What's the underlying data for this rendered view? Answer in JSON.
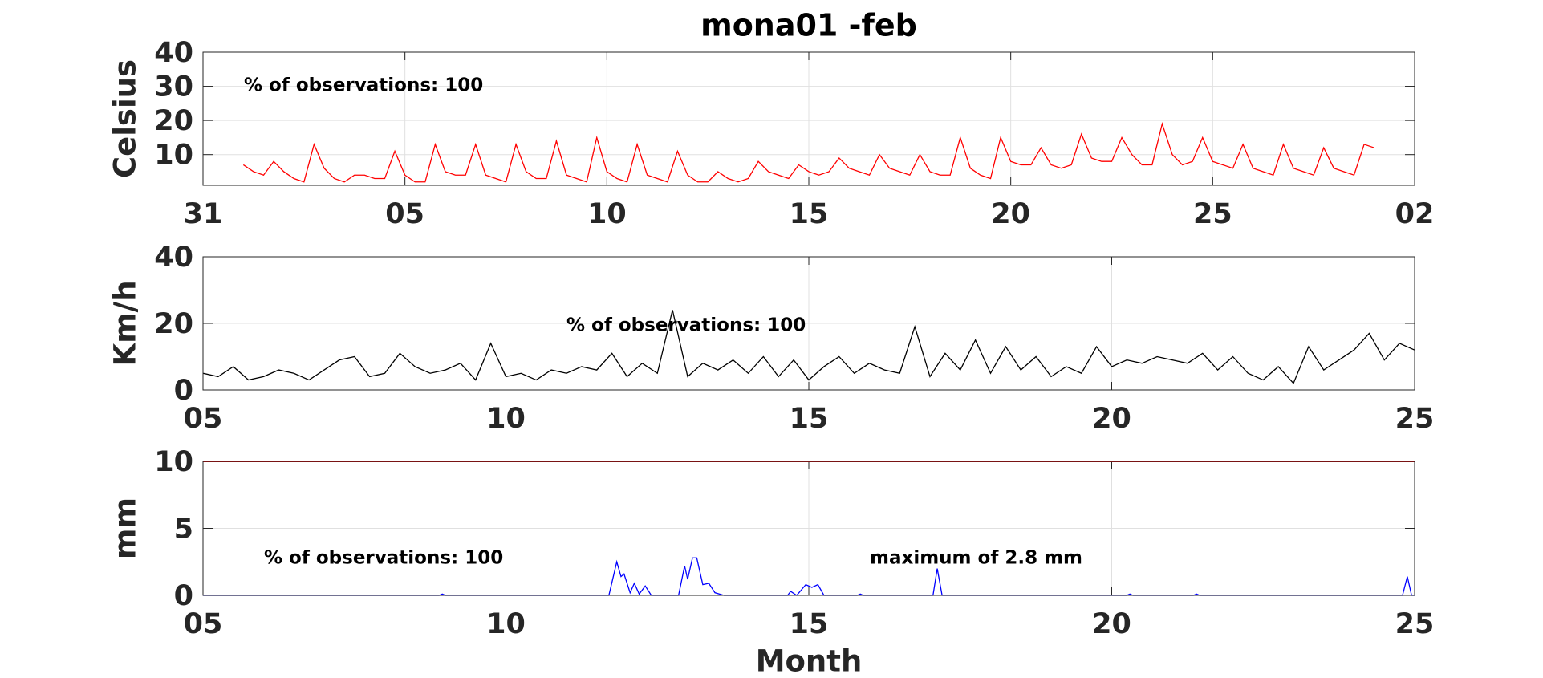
{
  "chart_data": [
    {
      "type": "line",
      "title": "mona01 -feb",
      "ylabel": "Celsius",
      "annotations": [
        "% of observations: 100"
      ],
      "color": "#ff0000",
      "grid": true,
      "xlim": [
        0,
        30
      ],
      "xticks": [
        {
          "value": 0,
          "label": "31"
        },
        {
          "value": 5,
          "label": "05"
        },
        10,
        15,
        20,
        25,
        {
          "value": 30,
          "label": "02"
        }
      ],
      "ylim": [
        1,
        40
      ],
      "yticks": [
        10,
        20,
        30,
        40
      ],
      "x": [
        1,
        1.25,
        1.5,
        1.75,
        2,
        2.25,
        2.5,
        2.75,
        3,
        3.25,
        3.5,
        3.75,
        4,
        4.25,
        4.5,
        4.75,
        5,
        5.25,
        5.5,
        5.75,
        6,
        6.25,
        6.5,
        6.75,
        7,
        7.25,
        7.5,
        7.75,
        8,
        8.25,
        8.5,
        8.75,
        9,
        9.25,
        9.5,
        9.75,
        10,
        10.25,
        10.5,
        10.75,
        11,
        11.25,
        11.5,
        11.75,
        12,
        12.25,
        12.5,
        12.75,
        13,
        13.25,
        13.5,
        13.75,
        14,
        14.25,
        14.5,
        14.75,
        15,
        15.25,
        15.5,
        15.75,
        16,
        16.25,
        16.5,
        16.75,
        17,
        17.25,
        17.5,
        17.75,
        18,
        18.25,
        18.5,
        18.75,
        19,
        19.25,
        19.5,
        19.75,
        20,
        20.25,
        20.5,
        20.75,
        21,
        21.25,
        21.5,
        21.75,
        22,
        22.25,
        22.5,
        22.75,
        23,
        23.25,
        23.5,
        23.75,
        24,
        24.25,
        24.5,
        24.75,
        25,
        25.25,
        25.5,
        25.75,
        26,
        26.25,
        26.5,
        26.75,
        27,
        27.25,
        27.5,
        27.75,
        28,
        28.25,
        28.5,
        28.75,
        29
      ],
      "values": [
        7,
        5,
        4,
        8,
        5,
        3,
        2,
        13,
        6,
        3,
        2,
        4,
        4,
        3,
        3,
        11,
        4,
        2,
        2,
        13,
        5,
        4,
        4,
        13,
        4,
        3,
        2,
        13,
        5,
        3,
        3,
        14,
        4,
        3,
        2,
        15,
        5,
        3,
        2,
        13,
        4,
        3,
        2,
        11,
        4,
        2,
        2,
        5,
        3,
        2,
        3,
        8,
        5,
        4,
        3,
        7,
        5,
        4,
        5,
        9,
        6,
        5,
        4,
        10,
        6,
        5,
        4,
        10,
        5,
        4,
        4,
        15,
        6,
        4,
        3,
        15,
        8,
        7,
        7,
        12,
        7,
        6,
        7,
        16,
        9,
        8,
        8,
        15,
        10,
        7,
        7,
        19,
        10,
        7,
        8,
        15,
        8,
        7,
        6,
        13,
        6,
        5,
        4,
        13,
        6,
        5,
        4,
        12,
        6,
        5,
        4,
        13,
        12
      ]
    },
    {
      "type": "line",
      "ylabel": "Km/h",
      "annotations": [
        "% of observations: 100"
      ],
      "color": "#000000",
      "grid": true,
      "xlim": [
        5,
        25
      ],
      "xticks": [
        {
          "value": 5,
          "label": "05"
        },
        10,
        15,
        20,
        25
      ],
      "ylim": [
        0,
        40
      ],
      "yticks": [
        0,
        20,
        40
      ],
      "x": [
        5,
        5.25,
        5.5,
        5.75,
        6,
        6.25,
        6.5,
        6.75,
        7,
        7.25,
        7.5,
        7.75,
        8,
        8.25,
        8.5,
        8.75,
        9,
        9.25,
        9.5,
        9.75,
        10,
        10.25,
        10.5,
        10.75,
        11,
        11.25,
        11.5,
        11.75,
        12,
        12.25,
        12.5,
        12.75,
        13,
        13.25,
        13.5,
        13.75,
        14,
        14.25,
        14.5,
        14.75,
        15,
        15.25,
        15.5,
        15.75,
        16,
        16.25,
        16.5,
        16.75,
        17,
        17.25,
        17.5,
        17.75,
        18,
        18.25,
        18.5,
        18.75,
        19,
        19.25,
        19.5,
        19.75,
        20,
        20.25,
        20.5,
        20.75,
        21,
        21.25,
        21.5,
        21.75,
        22,
        22.25,
        22.5,
        22.75,
        23,
        23.25,
        23.5,
        23.75,
        24,
        24.25,
        24.5,
        24.75,
        25
      ],
      "values": [
        5,
        4,
        7,
        3,
        4,
        6,
        5,
        3,
        6,
        9,
        10,
        4,
        5,
        11,
        7,
        5,
        6,
        8,
        3,
        14,
        4,
        5,
        3,
        6,
        5,
        7,
        6,
        11,
        4,
        8,
        5,
        24,
        4,
        8,
        6,
        9,
        5,
        10,
        4,
        9,
        3,
        7,
        10,
        5,
        8,
        6,
        5,
        19,
        4,
        11,
        6,
        15,
        5,
        13,
        6,
        10,
        4,
        7,
        5,
        13,
        7,
        9,
        8,
        10,
        9,
        8,
        11,
        6,
        10,
        5,
        3,
        7,
        2,
        13,
        6,
        9,
        12,
        17,
        9,
        14,
        12
      ]
    },
    {
      "type": "line",
      "ylabel": "mm",
      "xlabel": "Month",
      "annotations": [
        "% of observations: 100",
        "maximum of 2.8 mm"
      ],
      "color": "#0000ff",
      "grid": true,
      "hline": 10,
      "hline_color": "#cc0000",
      "xlim": [
        5,
        25
      ],
      "xticks": [
        {
          "value": 5,
          "label": "05"
        },
        10,
        15,
        20,
        25
      ],
      "ylim": [
        0,
        10
      ],
      "yticks": [
        0,
        5,
        10
      ],
      "x": [
        5,
        8.9,
        8.95,
        9.0,
        11.7,
        11.83,
        11.9,
        11.95,
        12.05,
        12.12,
        12.2,
        12.3,
        12.4,
        12.5,
        12.85,
        12.95,
        13.0,
        13.08,
        13.15,
        13.25,
        13.35,
        13.45,
        13.6,
        14.65,
        14.7,
        14.8,
        14.95,
        15.05,
        15.15,
        15.25,
        15.8,
        15.85,
        15.9,
        17.05,
        17.12,
        17.2,
        20.25,
        20.3,
        20.35,
        21.35,
        21.4,
        21.45,
        24.8,
        24.88,
        24.95,
        25
      ],
      "values": [
        0,
        0,
        0.1,
        0,
        0,
        2.5,
        1.4,
        1.6,
        0.2,
        0.9,
        0.1,
        0.7,
        0,
        0,
        0,
        2.2,
        1.2,
        2.8,
        2.8,
        0.8,
        0.9,
        0.2,
        0,
        0,
        0.3,
        0,
        0.8,
        0.6,
        0.8,
        0,
        0,
        0.1,
        0,
        0,
        2.0,
        0,
        0,
        0.1,
        0,
        0,
        0.1,
        0,
        0,
        1.4,
        0,
        0
      ]
    }
  ]
}
